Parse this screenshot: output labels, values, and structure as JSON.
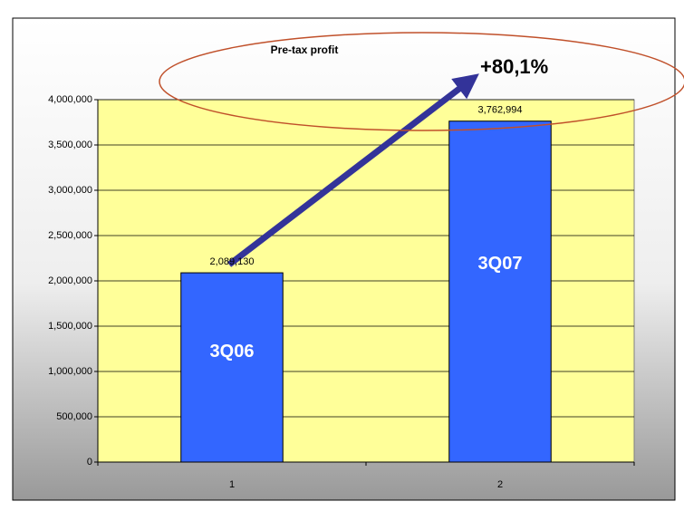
{
  "chart_data": {
    "type": "bar",
    "title": "Pre-tax profit",
    "annotation": "+80,1%",
    "categories": [
      "1",
      "2"
    ],
    "values": [
      2089130,
      3762994
    ],
    "value_labels": [
      "2,089,130",
      "3,762,994"
    ],
    "bar_labels": [
      "3Q06",
      "3Q07"
    ],
    "color": "#3366ff",
    "ylim": [
      0,
      4000000
    ],
    "yticks": [
      0,
      {
        "value": 500000,
        "label": "500,000"
      },
      {
        "value": 1000000,
        "label": "1,000,000"
      },
      {
        "value": 1500000,
        "label": "1,500,000"
      },
      {
        "value": 2000000,
        "label": "2,000,000"
      },
      {
        "value": 2500000,
        "label": "2,500,000"
      },
      {
        "value": 3000000,
        "label": "3,000,000"
      },
      {
        "value": 3500000,
        "label": "3,500,000"
      },
      {
        "value": 4000000,
        "label": "4,000,000"
      }
    ],
    "grid": true
  }
}
